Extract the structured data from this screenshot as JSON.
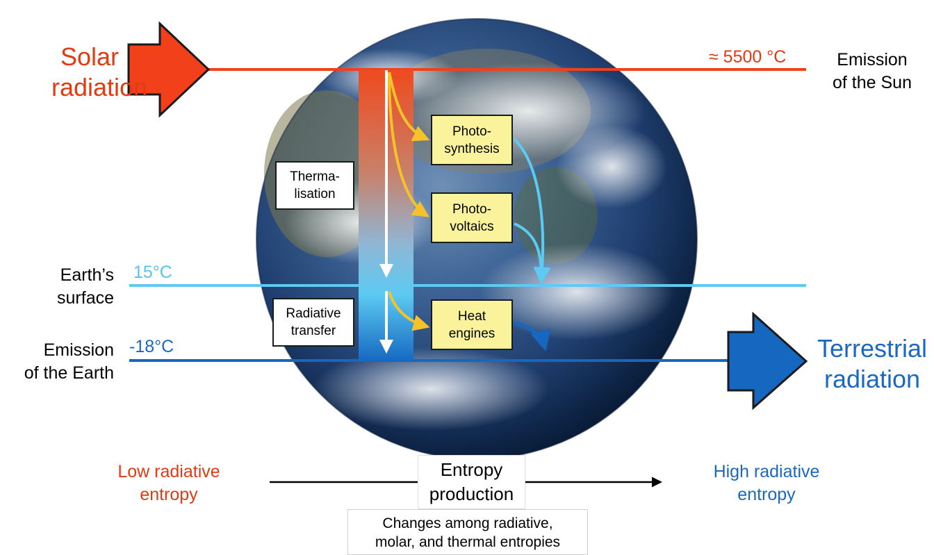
{
  "colors": {
    "solar": "#f2401a",
    "surface": "#5ccaf2",
    "earth_emission": "#1567c0",
    "converter_fill": "#fbf39b",
    "arrow_yellow": "#f5c22a"
  },
  "solar": {
    "line1": "Solar",
    "line2": "radiation",
    "temperature": "≈ 5500 °C"
  },
  "sun_emission": {
    "line1": "Emission",
    "line2": "of the Sun"
  },
  "surface": {
    "line1": "Earth’s",
    "line2": "surface",
    "temperature": "15°C"
  },
  "earth_emission": {
    "line1": "Emission",
    "line2": "of the Earth",
    "temperature": "-18°C"
  },
  "terrestrial": {
    "line1": "Terrestrial",
    "line2": "radiation"
  },
  "processes": {
    "thermalisation": {
      "line1": "Therma-",
      "line2": "lisation"
    },
    "radiative_transfer": {
      "line1": "Radiative",
      "line2": "transfer"
    }
  },
  "converters": {
    "photosynthesis": {
      "line1": "Photo-",
      "line2": "synthesis"
    },
    "photovoltaics": {
      "line1": "Photo-",
      "line2": "voltaics"
    },
    "heat_engines": {
      "line1": "Heat",
      "line2": "engines"
    }
  },
  "entropy": {
    "low_line1": "Low radiative",
    "low_line2": "entropy",
    "production_line1": "Entropy",
    "production_line2": "production",
    "high_line1": "High radiative",
    "high_line2": "entropy",
    "changes_line1": "Changes among radiative,",
    "changes_line2": "molar, and thermal entropies"
  }
}
